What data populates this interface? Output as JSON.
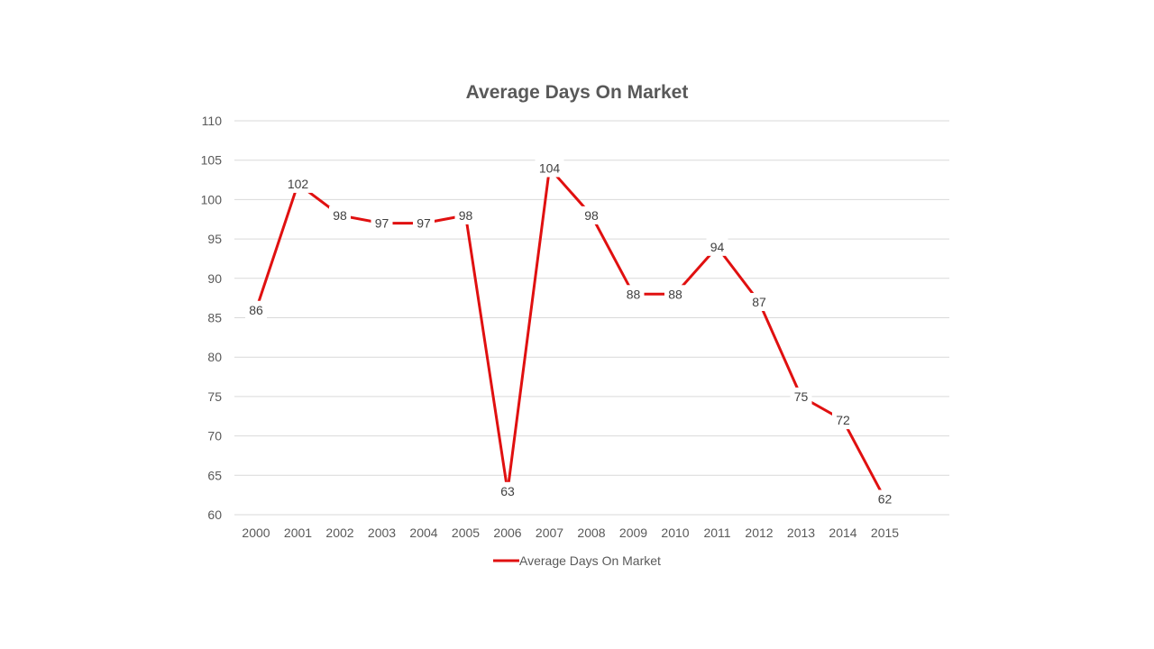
{
  "chart_data": {
    "type": "line",
    "title": "Average Days On Market",
    "xlabel": "",
    "ylabel": "",
    "categories": [
      "2000",
      "2001",
      "2002",
      "2003",
      "2004",
      "2005",
      "2006",
      "2007",
      "2008",
      "2009",
      "2010",
      "2011",
      "2012",
      "2013",
      "2014",
      "2015"
    ],
    "series": [
      {
        "name": "Average Days On Market",
        "color": "#e01010",
        "values": [
          86,
          102,
          98,
          97,
          97,
          98,
          63,
          104,
          98,
          88,
          88,
          94,
          87,
          75,
          72,
          62
        ]
      }
    ],
    "ylim": [
      60,
      110
    ],
    "yticks": [
      60,
      65,
      70,
      75,
      80,
      85,
      90,
      95,
      100,
      105,
      110
    ],
    "grid": true,
    "data_labels": true,
    "legend_position": "bottom"
  }
}
